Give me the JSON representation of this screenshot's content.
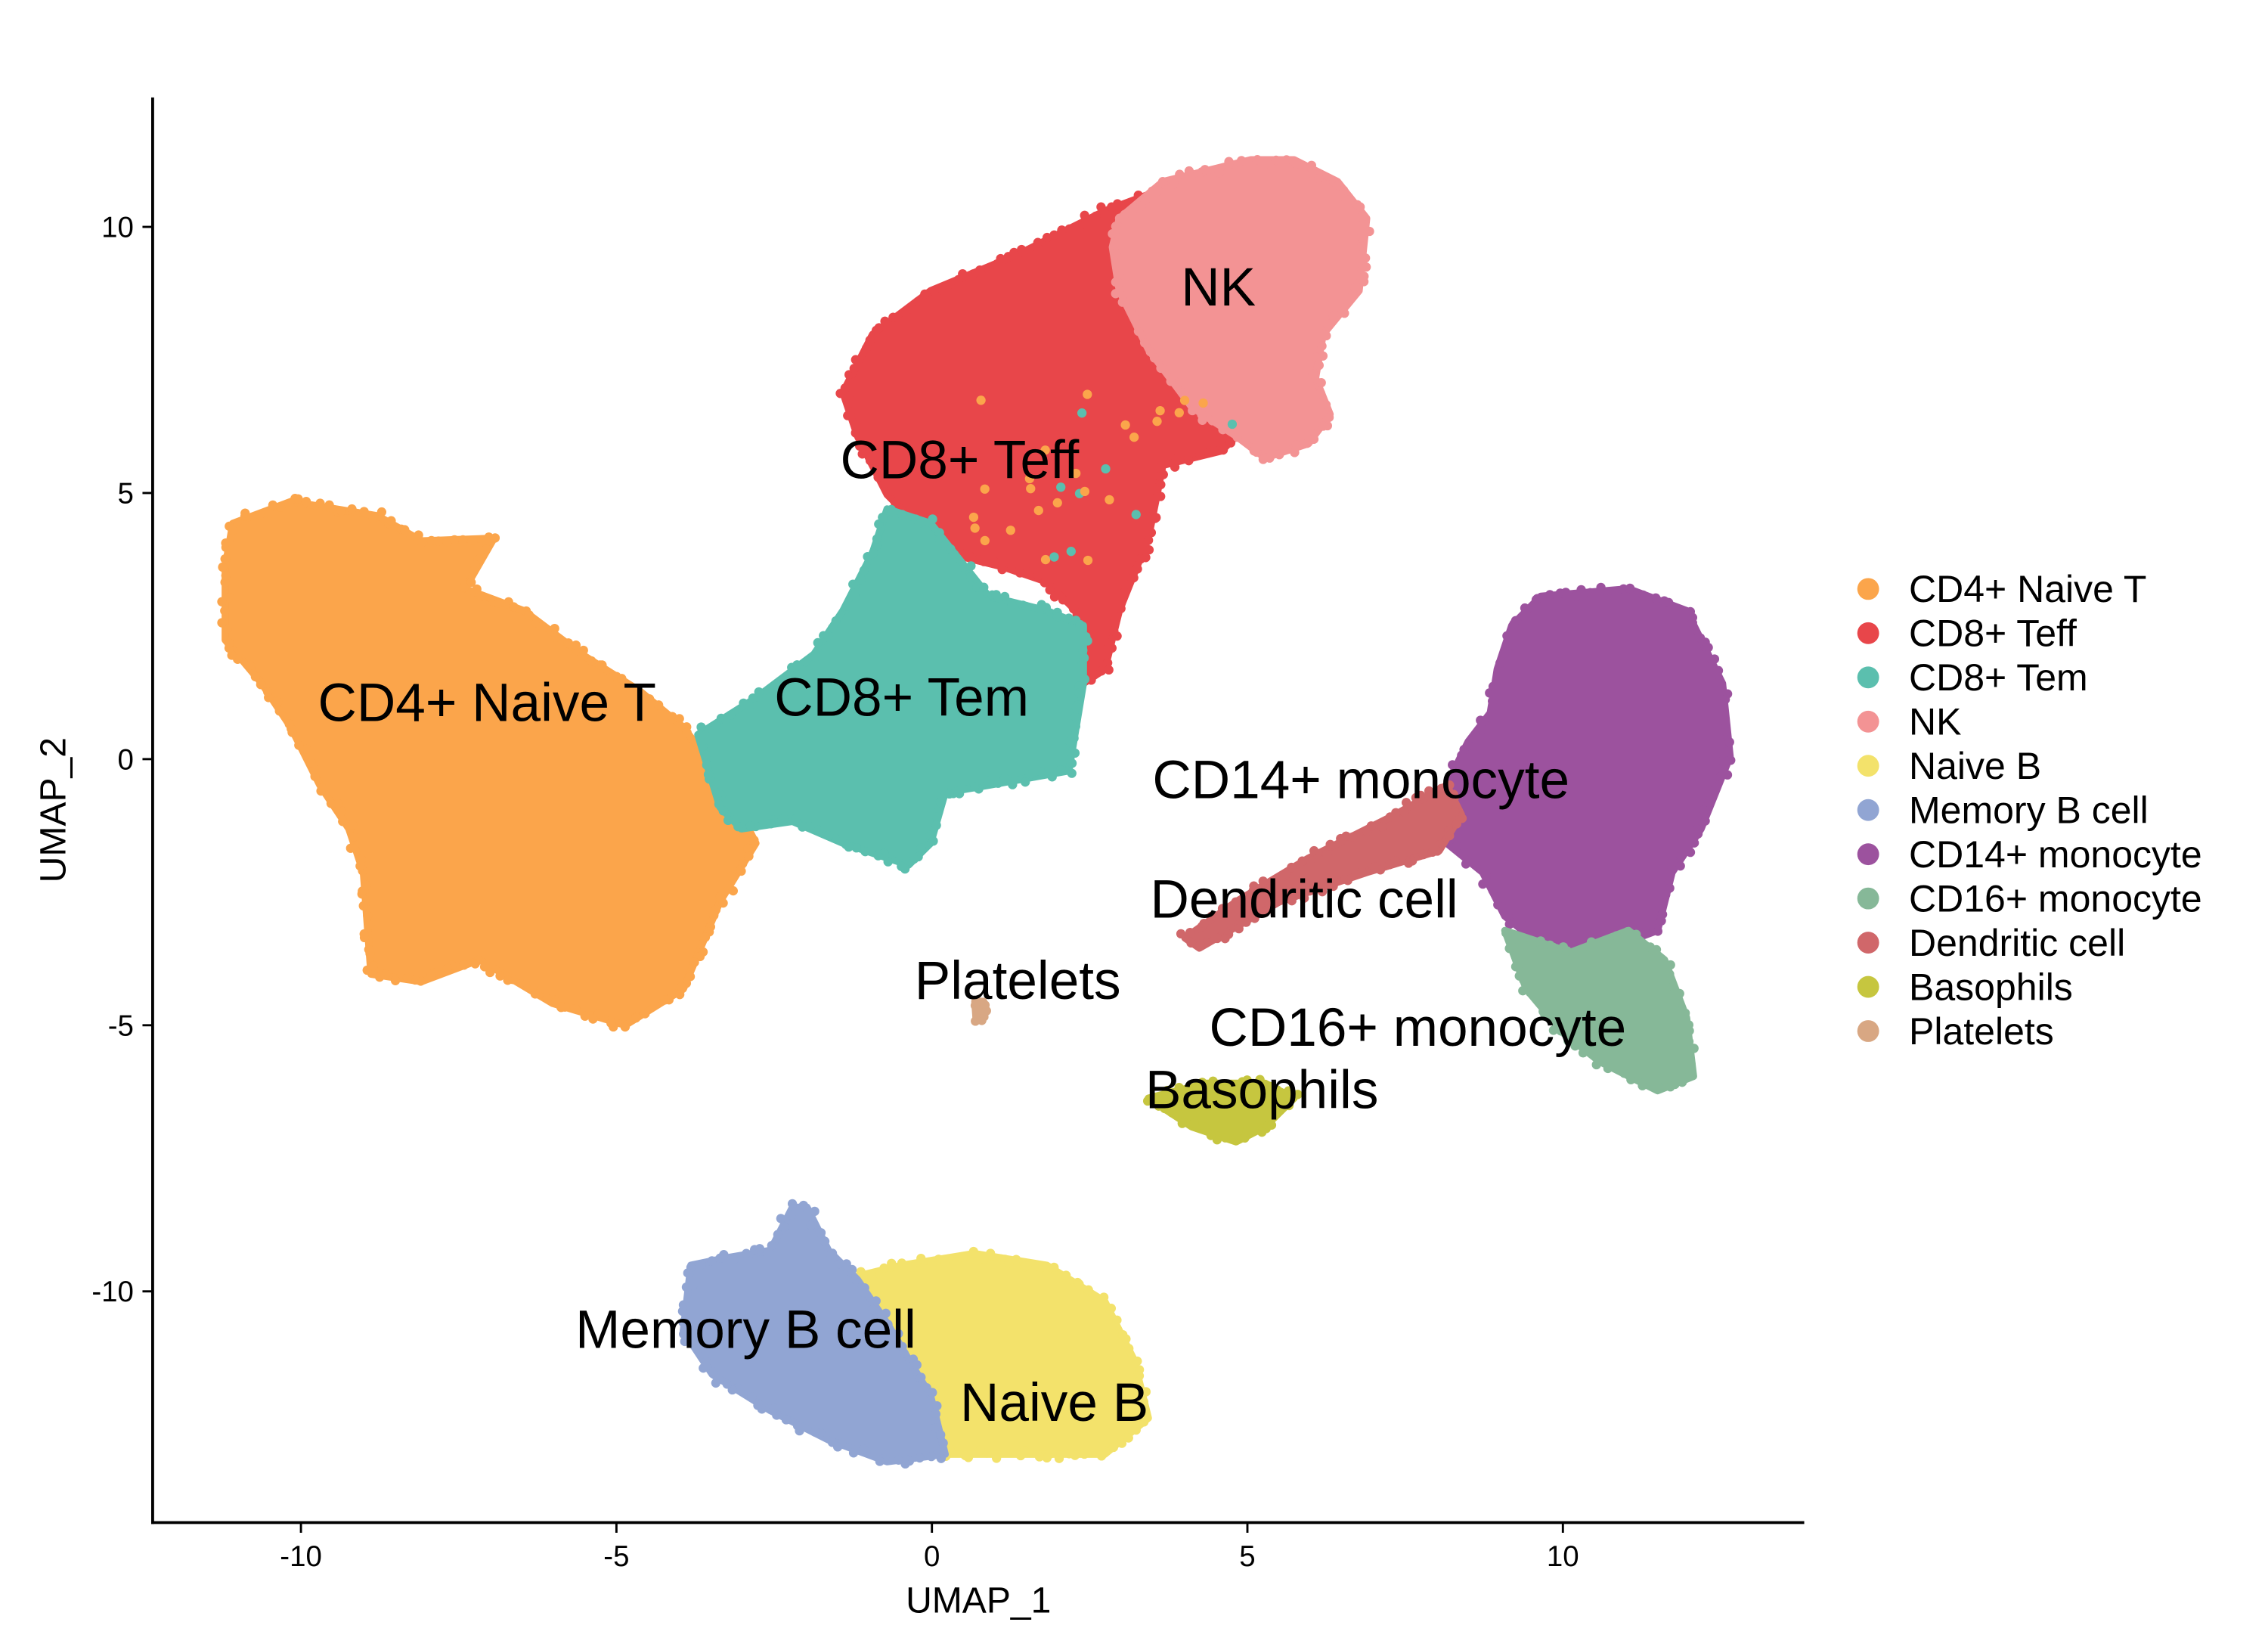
{
  "chart_data": {
    "type": "scatter",
    "xlabel": "UMAP_1",
    "ylabel": "UMAP_2",
    "xlim": [
      -12.35,
      13.82
    ],
    "ylim": [
      -14.34,
      12.43
    ],
    "xticks": [
      -10,
      -5,
      0,
      5,
      10
    ],
    "yticks": [
      -10,
      -5,
      0,
      5,
      10
    ],
    "xtick_labels": [
      "-10",
      "-5",
      "0",
      "5",
      "10"
    ],
    "ytick_labels": [
      "-10",
      "-5",
      "0",
      "5",
      "10"
    ],
    "grid": false,
    "legend_placement": "right",
    "clusters": [
      {
        "name": "CD4+ Naive T",
        "color": "#FBA54B",
        "label_at": [
          -7.05,
          1.07
        ],
        "outline": [
          [
            -11.08,
            4.43
          ],
          [
            -10.16,
            4.84
          ],
          [
            -8.78,
            4.57
          ],
          [
            -8.09,
            4.1
          ],
          [
            -6.94,
            4.15
          ],
          [
            -7.4,
            3.2
          ],
          [
            -6.47,
            2.79
          ],
          [
            -5.55,
            1.97
          ],
          [
            -4.63,
            1.28
          ],
          [
            -3.94,
            0.6
          ],
          [
            -3.25,
            -0.49
          ],
          [
            -2.79,
            -1.58
          ],
          [
            -3.36,
            -2.68
          ],
          [
            -3.94,
            -4.32
          ],
          [
            -4.86,
            -5.0
          ],
          [
            -6.01,
            -4.59
          ],
          [
            -7.17,
            -3.77
          ],
          [
            -8.09,
            -4.18
          ],
          [
            -8.89,
            -4.04
          ],
          [
            -9.01,
            -2.13
          ],
          [
            -9.24,
            -1.31
          ],
          [
            -9.7,
            -0.49
          ],
          [
            -10.16,
            0.6
          ],
          [
            -10.62,
            1.42
          ],
          [
            -11.2,
            2.24
          ],
          [
            -11.2,
            3.61
          ]
        ]
      },
      {
        "name": "CD8+ Teff",
        "color": "#E8464A",
        "label_at": [
          0.44,
          5.63
        ],
        "outline": [
          [
            -1.41,
            6.89
          ],
          [
            -0.94,
            7.98
          ],
          [
            -0.02,
            8.8
          ],
          [
            1.36,
            9.48
          ],
          [
            2.74,
            10.3
          ],
          [
            3.66,
            10.71
          ],
          [
            4.35,
            10.16
          ],
          [
            3.66,
            7.98
          ],
          [
            4.35,
            6.89
          ],
          [
            5.05,
            6.34
          ],
          [
            4.59,
            5.79
          ],
          [
            3.66,
            5.52
          ],
          [
            3.43,
            4.15
          ],
          [
            2.97,
            2.79
          ],
          [
            2.74,
            1.69
          ],
          [
            2.4,
            1.42
          ],
          [
            2.28,
            2.79
          ],
          [
            1.82,
            3.33
          ],
          [
            1.13,
            3.61
          ],
          [
            0.21,
            3.88
          ],
          [
            -0.71,
            4.97
          ],
          [
            -1.18,
            6.07
          ]
        ]
      },
      {
        "name": "CD8+ Tem",
        "color": "#5BBFAE",
        "label_at": [
          -0.48,
          1.17
        ],
        "outline": [
          [
            -3.71,
            0.46
          ],
          [
            -2.79,
            1.15
          ],
          [
            -1.87,
            1.97
          ],
          [
            -1.41,
            2.79
          ],
          [
            -0.94,
            3.88
          ],
          [
            -0.71,
            4.7
          ],
          [
            -0.02,
            4.43
          ],
          [
            0.9,
            3.06
          ],
          [
            1.82,
            2.79
          ],
          [
            2.4,
            2.51
          ],
          [
            2.4,
            1.42
          ],
          [
            2.17,
            -0.22
          ],
          [
            0.9,
            -0.49
          ],
          [
            0.21,
            -0.63
          ],
          [
            -0.02,
            -1.58
          ],
          [
            -0.37,
            -1.99
          ],
          [
            -1.41,
            -1.58
          ],
          [
            -2.21,
            -1.17
          ],
          [
            -3.02,
            -1.31
          ],
          [
            -3.36,
            -0.9
          ]
        ]
      },
      {
        "name": "NK",
        "color": "#F39394",
        "label_at": [
          4.54,
          8.88
        ],
        "outline": [
          [
            2.97,
            10.16
          ],
          [
            3.66,
            10.85
          ],
          [
            5.05,
            11.26
          ],
          [
            5.74,
            11.26
          ],
          [
            6.43,
            10.85
          ],
          [
            6.89,
            10.16
          ],
          [
            6.77,
            8.8
          ],
          [
            6.2,
            7.98
          ],
          [
            6.08,
            7.16
          ],
          [
            6.31,
            6.48
          ],
          [
            5.97,
            5.93
          ],
          [
            5.28,
            5.66
          ],
          [
            4.82,
            6.07
          ],
          [
            4.12,
            6.61
          ],
          [
            3.43,
            7.7
          ],
          [
            2.97,
            8.8
          ],
          [
            2.86,
            9.62
          ]
        ]
      },
      {
        "name": "Naive B",
        "color": "#F3E26B",
        "label_at": [
          1.94,
          -12.08
        ],
        "outline": [
          [
            -1.41,
            -9.78
          ],
          [
            -0.48,
            -9.51
          ],
          [
            0.67,
            -9.29
          ],
          [
            1.82,
            -9.51
          ],
          [
            2.74,
            -10.19
          ],
          [
            3.2,
            -11.28
          ],
          [
            3.43,
            -12.38
          ],
          [
            2.74,
            -13.06
          ],
          [
            1.36,
            -13.06
          ],
          [
            0.21,
            -13.06
          ],
          [
            -0.25,
            -11.97
          ],
          [
            -0.71,
            -10.87
          ],
          [
            -1.18,
            -10.33
          ]
        ]
      },
      {
        "name": "Memory B cell",
        "color": "#91A5D3",
        "label_at": [
          -2.95,
          -10.71
        ],
        "outline": [
          [
            -3.82,
            -9.51
          ],
          [
            -3.25,
            -9.37
          ],
          [
            -2.56,
            -9.23
          ],
          [
            -2.21,
            -8.42
          ],
          [
            -1.98,
            -8.42
          ],
          [
            -1.64,
            -9.23
          ],
          [
            -1.18,
            -9.78
          ],
          [
            -0.71,
            -10.6
          ],
          [
            -0.02,
            -11.97
          ],
          [
            0.21,
            -13.06
          ],
          [
            -0.71,
            -13.2
          ],
          [
            -1.64,
            -12.79
          ],
          [
            -2.56,
            -12.24
          ],
          [
            -3.48,
            -11.56
          ],
          [
            -3.94,
            -10.74
          ]
        ]
      },
      {
        "name": "CD14+ monocyte",
        "color": "#9C529E",
        "label_at": [
          6.8,
          -0.38
        ],
        "outline": [
          [
            9.19,
            2.51
          ],
          [
            9.65,
            3.06
          ],
          [
            11.04,
            3.2
          ],
          [
            11.96,
            2.79
          ],
          [
            12.53,
            1.42
          ],
          [
            12.65,
            0.05
          ],
          [
            12.19,
            -1.31
          ],
          [
            11.73,
            -2.13
          ],
          [
            11.5,
            -3.22
          ],
          [
            10.58,
            -3.63
          ],
          [
            9.65,
            -3.5
          ],
          [
            9.08,
            -2.95
          ],
          [
            8.73,
            -2.13
          ],
          [
            8.16,
            -1.58
          ],
          [
            8.04,
            -0.77
          ],
          [
            8.5,
            0.33
          ],
          [
            8.85,
            0.87
          ],
          [
            8.96,
            1.69
          ]
        ]
      },
      {
        "name": "CD16+ monocyte",
        "color": "#86B898",
        "label_at": [
          7.7,
          -5.03
        ],
        "outline": [
          [
            9.08,
            -3.22
          ],
          [
            10.12,
            -3.63
          ],
          [
            11.04,
            -3.22
          ],
          [
            11.61,
            -3.77
          ],
          [
            11.96,
            -4.86
          ],
          [
            12.07,
            -5.96
          ],
          [
            11.5,
            -6.23
          ],
          [
            10.58,
            -5.68
          ],
          [
            10.0,
            -5.14
          ],
          [
            9.42,
            -4.32
          ]
        ]
      },
      {
        "name": "Dendritic cell",
        "color": "#D0676A",
        "label_at": [
          5.9,
          -2.62
        ],
        "outline": [
          [
            4.01,
            -3.36
          ],
          [
            4.82,
            -2.68
          ],
          [
            5.97,
            -1.86
          ],
          [
            7.35,
            -1.04
          ],
          [
            8.16,
            -0.49
          ],
          [
            8.39,
            -1.04
          ],
          [
            8.04,
            -1.72
          ],
          [
            6.89,
            -2.13
          ],
          [
            5.51,
            -2.68
          ],
          [
            4.24,
            -3.55
          ]
        ]
      },
      {
        "name": "Basophils",
        "color": "#C6C63F",
        "label_at": [
          5.23,
          -6.2
        ],
        "outline": [
          [
            3.43,
            -6.37
          ],
          [
            4.35,
            -6.09
          ],
          [
            5.28,
            -6.09
          ],
          [
            5.74,
            -6.37
          ],
          [
            5.28,
            -6.91
          ],
          [
            4.82,
            -7.19
          ],
          [
            4.12,
            -6.91
          ]
        ]
      },
      {
        "name": "Platelets",
        "color": "#D8A783",
        "label_at": [
          1.36,
          -4.15
        ],
        "outline": [
          [
            0.68,
            -4.55
          ],
          [
            0.82,
            -4.55
          ],
          [
            0.84,
            -4.85
          ],
          [
            0.7,
            -4.88
          ]
        ]
      }
    ]
  }
}
